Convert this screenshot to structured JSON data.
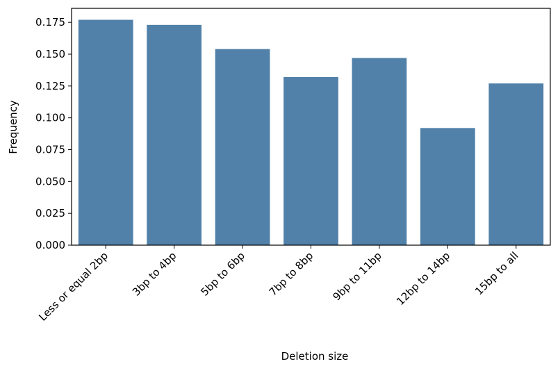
{
  "chart_data": {
    "type": "bar",
    "categories": [
      "Less or equal 2bp",
      "3bp to 4bp",
      "5bp to 6bp",
      "7bp to 8bp",
      "9bp to 11bp",
      "12bp to 14bp",
      "15bp to all"
    ],
    "values": [
      0.177,
      0.173,
      0.154,
      0.132,
      0.147,
      0.092,
      0.127
    ],
    "color": "#5181a9",
    "xlabel": "Deletion size",
    "ylabel": "Frequency",
    "ylim": [
      0,
      0.186
    ],
    "yticks": [
      {
        "value": 0,
        "label": "0.000"
      },
      {
        "value": 0.025,
        "label": "0.025"
      },
      {
        "value": 0.05,
        "label": "0.050"
      },
      {
        "value": 0.075,
        "label": "0.075"
      },
      {
        "value": 0.1,
        "label": "0.100"
      },
      {
        "value": 0.125,
        "label": "0.125"
      },
      {
        "value": 0.15,
        "label": "0.150"
      },
      {
        "value": 0.175,
        "label": "0.175"
      }
    ]
  }
}
